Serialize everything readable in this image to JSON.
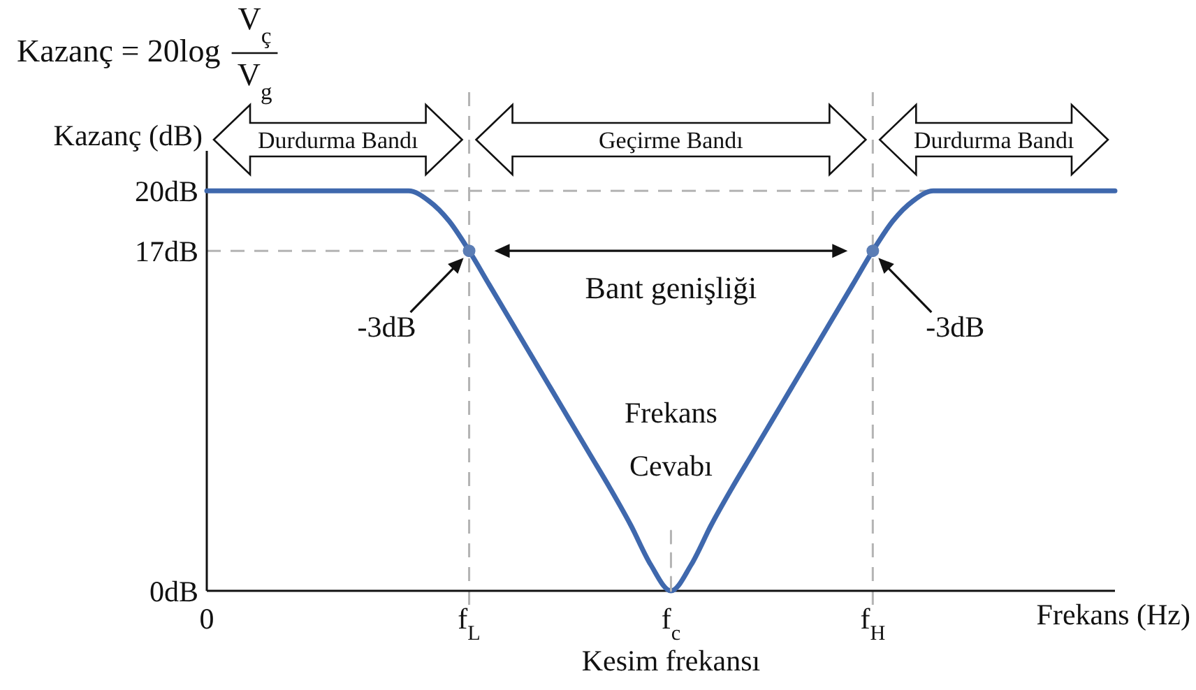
{
  "chart_data": {
    "type": "line",
    "title": "Kazanç = 20log V$_{ç}$ V$_{g}$",
    "xlabel": "Frekans (Hz)",
    "ylabel": "Kazanç (dB)",
    "categories": [
      "0",
      null,
      null,
      null,
      null,
      null,
      null,
      null,
      null,
      null,
      null,
      null,
      null,
      "f$_{L}$",
      null,
      null,
      null,
      null,
      null,
      null,
      null,
      null,
      null,
      "f$_{c}$",
      null,
      null,
      null,
      null,
      null,
      null,
      null,
      null,
      null,
      "f$_{H}$",
      null,
      null,
      null,
      null,
      null,
      null,
      null,
      null,
      null,
      null,
      null,
      null
    ],
    "ylim": [
      0,
      22
    ],
    "yticks": [
      {
        "value": 0,
        "label": "0dB"
      },
      {
        "value": 17,
        "label": "17dB"
      },
      {
        "value": 20,
        "label": "20dB"
      }
    ],
    "series": [
      {
        "name": "Frekans Cevabı",
        "color": "#3f68ad",
        "values": [
          20,
          20,
          20,
          20,
          20,
          20,
          20,
          20,
          20,
          20,
          20,
          19.5,
          18.5,
          17,
          15.3,
          13.6,
          11.9,
          10.2,
          8.5,
          6.8,
          5.1,
          3.3,
          1.3,
          0,
          1.3,
          3.3,
          5.1,
          6.8,
          8.5,
          10.2,
          11.9,
          13.6,
          15.3,
          17,
          18.5,
          19.5,
          20,
          20,
          20,
          20,
          20,
          20,
          20,
          20,
          20,
          20
        ]
      },
      {
        "type": "line",
        "color": "#b4b4b4",
        "line_style": "dashed",
        "x": [
          "f$_{c}$",
          "f$_{c}$"
        ],
        "values": [
          0,
          3
        ]
      },
      {
        "type": "scatter",
        "color": "#5b7db5",
        "marker": "circle",
        "x": [
          "f$_{L}$",
          "f$_{H}$"
        ],
        "values": [
          17,
          17
        ]
      }
    ],
    "ref_lines": [
      {
        "axis": "y",
        "value": 20,
        "color": "#b4b4b4",
        "line_style": "dashed"
      },
      {
        "axis": "y",
        "value": 17,
        "color": "#b4b4b4",
        "line_style": "dashed"
      },
      {
        "axis": "x",
        "value": "f$_{L}$",
        "color": "#b4b4b4",
        "line_style": "dashed"
      },
      {
        "axis": "x",
        "value": "f$_{H}$",
        "color": "#b4b4b4",
        "line_style": "dashed"
      }
    ],
    "annotations": [
      "Durdurma Bandı",
      "Geçirme Bandı",
      "Durdurma Bandı",
      {
        "text": "-3dB",
        "x": "f$_{L}$",
        "y": 17
      },
      "Bant genişliği",
      {
        "text": "-3dB",
        "x": "f$_{H}$",
        "y": 17
      },
      "Kesim frekansı"
    ]
  }
}
